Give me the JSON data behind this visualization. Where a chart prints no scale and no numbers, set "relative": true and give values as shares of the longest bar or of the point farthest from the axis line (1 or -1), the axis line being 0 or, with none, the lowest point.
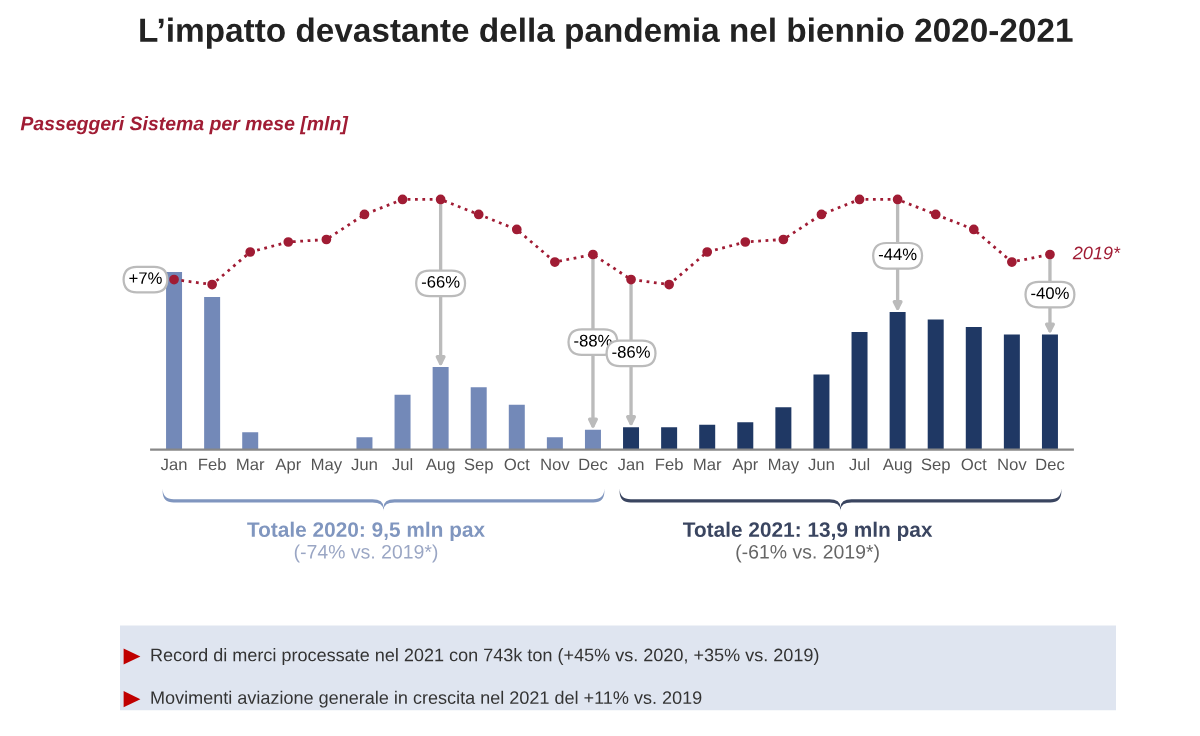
{
  "chart_data": {
    "type": "bar",
    "relative": true,
    "title": "L’impatto devastante della pandemia nel biennio 2020-2021",
    "subtitle": "Passeggeri Sistema per mese [mln]",
    "categories": [
      "Jan",
      "Feb",
      "Mar",
      "Apr",
      "May",
      "Jun",
      "Jul",
      "Aug",
      "Sep",
      "Oct",
      "Nov",
      "Dec",
      "Jan",
      "Feb",
      "Mar",
      "Apr",
      "May",
      "Jun",
      "Jul",
      "Aug",
      "Sep",
      "Oct",
      "Nov",
      "Dec"
    ],
    "series": [
      {
        "color": "#7389b8",
        "values": [
          0.71,
          0.61,
          0.07,
          0,
          0,
          0.05,
          0.22,
          0.33,
          0.25,
          0.18,
          0.05,
          0.08,
          null,
          null,
          null,
          null,
          null,
          null,
          null,
          null,
          null,
          null,
          null,
          null
        ]
      },
      {
        "color": "#1f3864",
        "values": [
          null,
          null,
          null,
          null,
          null,
          null,
          null,
          null,
          null,
          null,
          null,
          null,
          0.09,
          0.09,
          0.1,
          0.11,
          0.17,
          0.3,
          0.47,
          0.55,
          0.52,
          0.49,
          0.46,
          0.46
        ]
      },
      {
        "type": "line",
        "name": "2019*",
        "color": "#a01c34",
        "values": [
          0.68,
          0.66,
          0.79,
          0.83,
          0.84,
          0.94,
          1,
          1,
          0.94,
          0.88,
          0.75,
          0.78,
          0.68,
          0.66,
          0.79,
          0.83,
          0.84,
          0.94,
          1,
          1,
          0.94,
          0.88,
          0.75,
          0.78
        ]
      }
    ],
    "marker": "circle",
    "line_style": "dotted",
    "annotations": [
      "+7%",
      "-66%",
      "-88%",
      "-86%",
      "-44%",
      "-40%",
      "Totale 2020: 9,5 mln pax",
      "(-74% vs. 2019*)",
      "Totale 2021: 13,9 mln pax",
      "(-61% vs. 2019*)",
      "Record di merci processate nel 2021 con 743k ton (+45% vs. 2020, +35% vs. 2019)",
      "Movimenti aviazione generale in crescita nel 2021 del +11% vs. 2019"
    ]
  }
}
